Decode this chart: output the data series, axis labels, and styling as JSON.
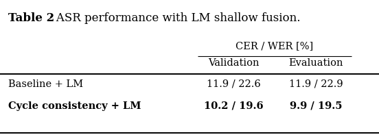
{
  "title_bold": "Table 2",
  "title_rest": ": ASR performance with LM shallow fusion.",
  "col_group_header": "CER / WER [%]",
  "col_headers": [
    "Validation",
    "Evaluation"
  ],
  "row_labels": [
    "Baseline + LM",
    "Cycle consistency + LM"
  ],
  "data": [
    [
      "11.9 / 22.6",
      "11.9 / 22.9"
    ],
    [
      "10.2 / 19.6",
      "9.9 / 19.5"
    ]
  ],
  "bold_rows": [
    1
  ],
  "bg_color": "#ffffff",
  "text_color": "#000000",
  "font_size": 10.5,
  "title_font_size": 12
}
